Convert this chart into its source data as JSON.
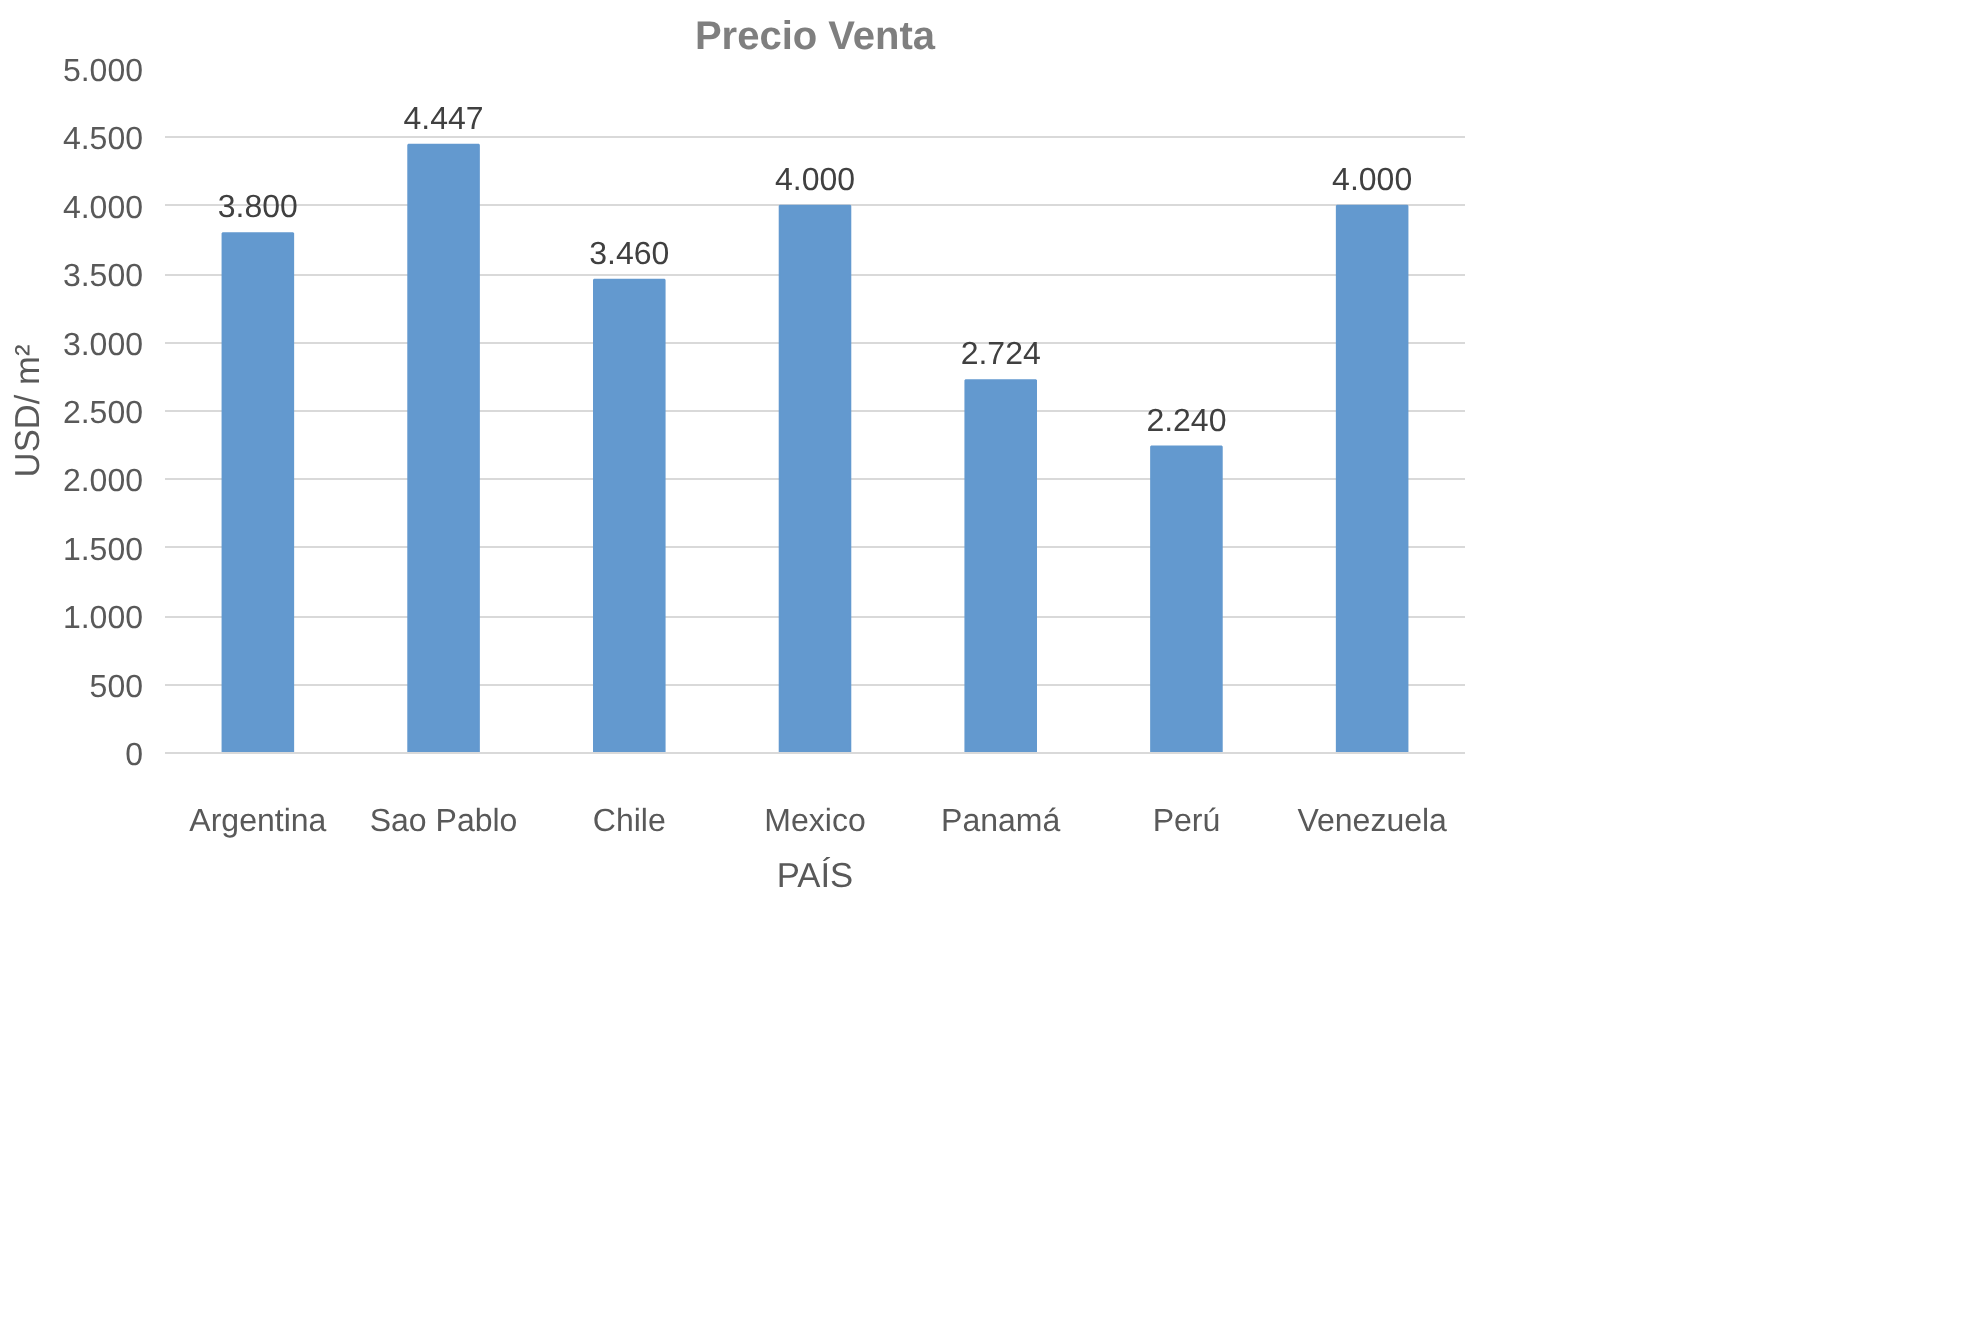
{
  "chart_data": {
    "type": "bar",
    "title": "Precio Venta",
    "xlabel": "PAÍS",
    "ylabel": "USD/ m²",
    "categories": [
      "Argentina",
      "Sao Pablo",
      "Chile",
      "Mexico",
      "Panamá",
      "Perú",
      "Venezuela"
    ],
    "values": [
      3800,
      4447,
      3460,
      4000,
      2724,
      2240,
      4000
    ],
    "value_labels": [
      "3.800",
      "4.447",
      "3.460",
      "4.000",
      "2.724",
      "2.240",
      "4.000"
    ],
    "color": "#6399cf",
    "ylim": [
      0,
      5000
    ],
    "yticks": [
      {
        "value": 0,
        "label": "0"
      },
      {
        "value": 500,
        "label": "500"
      },
      {
        "value": 1000,
        "label": "1.000"
      },
      {
        "value": 1500,
        "label": "1.500"
      },
      {
        "value": 2000,
        "label": "2.000"
      },
      {
        "value": 2500,
        "label": "2.500"
      },
      {
        "value": 3000,
        "label": "3.000"
      },
      {
        "value": 3500,
        "label": "3.500"
      },
      {
        "value": 4000,
        "label": "4.000"
      },
      {
        "value": 4500,
        "label": "4.500"
      },
      {
        "value": 5000,
        "label": "5.000"
      }
    ],
    "grid": "y"
  }
}
